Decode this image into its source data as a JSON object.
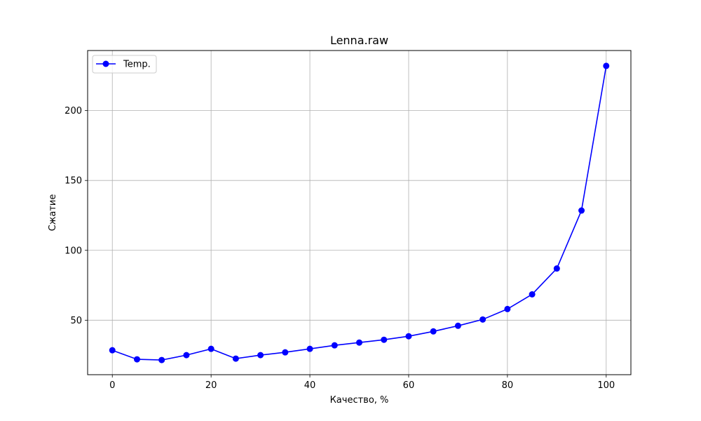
{
  "chart_data": {
    "type": "line",
    "title": "Lenna.raw",
    "xlabel": "Качество, %",
    "ylabel": "Сжатие",
    "xlim": [
      -5,
      105
    ],
    "ylim": [
      11,
      243
    ],
    "xticks": [
      0,
      20,
      40,
      60,
      80,
      100
    ],
    "yticks": [
      50,
      100,
      150,
      200
    ],
    "grid": true,
    "legend_position": "top-left",
    "series": [
      {
        "name": "Temp.",
        "color": "#0000ff",
        "marker": "circle",
        "x": [
          0,
          5,
          10,
          15,
          20,
          25,
          30,
          35,
          40,
          45,
          50,
          55,
          60,
          65,
          70,
          75,
          80,
          85,
          90,
          95,
          100
        ],
        "y": [
          28.5,
          22,
          21.5,
          25,
          29.5,
          22.5,
          25,
          27,
          29.5,
          32,
          34,
          36,
          38.5,
          42,
          46,
          50.5,
          58,
          68.5,
          87,
          128.5,
          232
        ]
      }
    ]
  }
}
